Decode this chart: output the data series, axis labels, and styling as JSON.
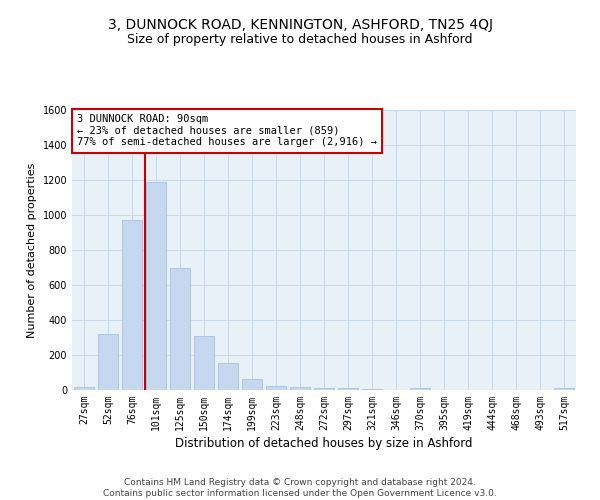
{
  "title": "3, DUNNOCK ROAD, KENNINGTON, ASHFORD, TN25 4QJ",
  "subtitle": "Size of property relative to detached houses in Ashford",
  "xlabel": "Distribution of detached houses by size in Ashford",
  "ylabel": "Number of detached properties",
  "categories": [
    "27sqm",
    "52sqm",
    "76sqm",
    "101sqm",
    "125sqm",
    "150sqm",
    "174sqm",
    "199sqm",
    "223sqm",
    "248sqm",
    "272sqm",
    "297sqm",
    "321sqm",
    "346sqm",
    "370sqm",
    "395sqm",
    "419sqm",
    "444sqm",
    "468sqm",
    "493sqm",
    "517sqm"
  ],
  "values": [
    20,
    320,
    970,
    1190,
    700,
    310,
    155,
    65,
    25,
    15,
    10,
    10,
    5,
    0,
    10,
    0,
    0,
    0,
    0,
    0,
    10
  ],
  "bar_color": "#c5d8f0",
  "bar_edge_color": "#a0b8d8",
  "property_line_color": "#cc0000",
  "property_line_x": 2.56,
  "annotation_text": "3 DUNNOCK ROAD: 90sqm\n← 23% of detached houses are smaller (859)\n77% of semi-detached houses are larger (2,916) →",
  "annotation_box_color": "#ffffff",
  "annotation_box_edge": "#cc0000",
  "ylim": [
    0,
    1600
  ],
  "yticks": [
    0,
    200,
    400,
    600,
    800,
    1000,
    1200,
    1400,
    1600
  ],
  "grid_color": "#c8d8e8",
  "background_color": "#e8f0f8",
  "footer": "Contains HM Land Registry data © Crown copyright and database right 2024.\nContains public sector information licensed under the Open Government Licence v3.0.",
  "title_fontsize": 10,
  "subtitle_fontsize": 9,
  "xlabel_fontsize": 8.5,
  "ylabel_fontsize": 8,
  "tick_fontsize": 7,
  "annotation_fontsize": 7.5,
  "footer_fontsize": 6.5
}
